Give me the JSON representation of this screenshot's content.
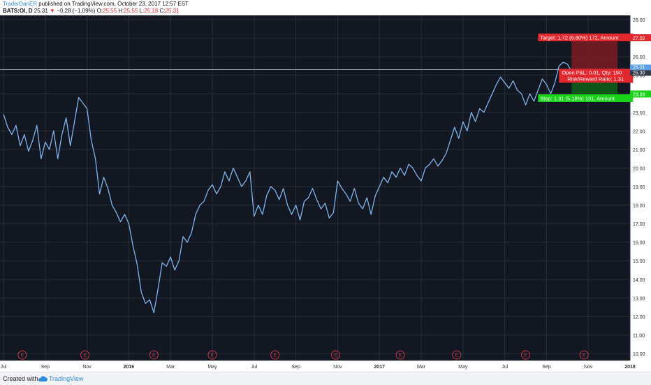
{
  "header": {
    "author": "TraderDanER",
    "published": "published on TradingView.com, October 23, 2017 12:57 EST",
    "symbol": "BATS:OI, D",
    "last": "25.31",
    "change": "−0.28 (−1.09%)",
    "open_label": "O:",
    "open": "25.55",
    "high_label": "H:",
    "high": "25.55",
    "low_label": "L:",
    "low": "25.18",
    "close_label": "C:",
    "close": "25.31"
  },
  "footer": {
    "created_with": "Created with",
    "brand": "TradingView"
  },
  "colors": {
    "background": "#131722",
    "line": "#7cb5ec",
    "grid": "#2a2e39",
    "target_zone": "#7a1d22",
    "stop_zone": "#0f5f1a",
    "target_label": "#e0282e",
    "stop_label": "#19d319"
  },
  "chart_data": {
    "type": "line",
    "ylim": [
      10,
      28
    ],
    "y_ticks": [
      "28.00",
      "27.00",
      "26.00",
      "25.00",
      "24.00",
      "23.00",
      "22.00",
      "21.00",
      "20.00",
      "19.00",
      "18.00",
      "17.00",
      "16.00",
      "15.00",
      "14.00",
      "13.00",
      "12.00",
      "11.00",
      "10.00"
    ],
    "x_ticks": [
      {
        "label": "Jul",
        "bold": false,
        "t": 0.0
      },
      {
        "label": "Sep",
        "bold": false,
        "t": 2.0
      },
      {
        "label": "Nov",
        "bold": false,
        "t": 4.0
      },
      {
        "label": "2016",
        "bold": true,
        "t": 6.0
      },
      {
        "label": "Mar",
        "bold": false,
        "t": 8.0
      },
      {
        "label": "May",
        "bold": false,
        "t": 10.0
      },
      {
        "label": "Jul",
        "bold": false,
        "t": 12.0
      },
      {
        "label": "Sep",
        "bold": false,
        "t": 14.0
      },
      {
        "label": "Nov",
        "bold": false,
        "t": 16.0
      },
      {
        "label": "2017",
        "bold": true,
        "t": 18.0
      },
      {
        "label": "Mar",
        "bold": false,
        "t": 20.0
      },
      {
        "label": "May",
        "bold": false,
        "t": 22.0
      },
      {
        "label": "Jul",
        "bold": false,
        "t": 24.0
      },
      {
        "label": "Sep",
        "bold": false,
        "t": 26.0
      },
      {
        "label": "Nov",
        "bold": false,
        "t": 28.0
      },
      {
        "label": "2018",
        "bold": true,
        "t": 30.0
      }
    ],
    "earnings_marker": "E",
    "earnings_t": [
      0.9,
      3.9,
      7.2,
      10.0,
      13.0,
      15.9,
      19.0,
      21.7,
      25.0,
      27.8
    ],
    "series": [
      {
        "points": [
          [
            0.0,
            22.9
          ],
          [
            0.2,
            22.2
          ],
          [
            0.4,
            21.8
          ],
          [
            0.6,
            22.3
          ],
          [
            0.8,
            21.2
          ],
          [
            1.0,
            21.8
          ],
          [
            1.2,
            20.9
          ],
          [
            1.4,
            21.5
          ],
          [
            1.6,
            22.3
          ],
          [
            1.8,
            20.5
          ],
          [
            2.0,
            21.4
          ],
          [
            2.2,
            21.0
          ],
          [
            2.4,
            22.0
          ],
          [
            2.6,
            20.5
          ],
          [
            2.8,
            21.8
          ],
          [
            3.0,
            22.7
          ],
          [
            3.2,
            21.2
          ],
          [
            3.4,
            22.5
          ],
          [
            3.6,
            23.8
          ],
          [
            3.8,
            23.5
          ],
          [
            4.0,
            23.2
          ],
          [
            4.2,
            21.5
          ],
          [
            4.4,
            20.5
          ],
          [
            4.6,
            18.6
          ],
          [
            4.8,
            19.5
          ],
          [
            5.0,
            18.9
          ],
          [
            5.2,
            18.0
          ],
          [
            5.4,
            17.6
          ],
          [
            5.6,
            17.1
          ],
          [
            5.8,
            17.5
          ],
          [
            6.0,
            17.0
          ],
          [
            6.2,
            15.8
          ],
          [
            6.4,
            14.8
          ],
          [
            6.6,
            13.3
          ],
          [
            6.8,
            12.7
          ],
          [
            7.0,
            12.9
          ],
          [
            7.2,
            12.2
          ],
          [
            7.4,
            13.5
          ],
          [
            7.6,
            14.9
          ],
          [
            7.8,
            14.7
          ],
          [
            8.0,
            15.2
          ],
          [
            8.2,
            14.5
          ],
          [
            8.4,
            15.0
          ],
          [
            8.6,
            16.3
          ],
          [
            8.8,
            16.0
          ],
          [
            9.0,
            16.5
          ],
          [
            9.2,
            17.5
          ],
          [
            9.4,
            18.0
          ],
          [
            9.6,
            18.2
          ],
          [
            9.8,
            18.8
          ],
          [
            10.0,
            19.1
          ],
          [
            10.2,
            18.6
          ],
          [
            10.4,
            19.0
          ],
          [
            10.6,
            19.8
          ],
          [
            10.8,
            19.3
          ],
          [
            11.0,
            20.0
          ],
          [
            11.2,
            19.5
          ],
          [
            11.4,
            19.0
          ],
          [
            11.6,
            19.3
          ],
          [
            11.8,
            19.8
          ],
          [
            12.0,
            17.4
          ],
          [
            12.2,
            18.0
          ],
          [
            12.4,
            17.5
          ],
          [
            12.6,
            18.5
          ],
          [
            12.8,
            19.0
          ],
          [
            13.0,
            18.8
          ],
          [
            13.2,
            18.3
          ],
          [
            13.4,
            18.9
          ],
          [
            13.6,
            18.0
          ],
          [
            13.8,
            17.5
          ],
          [
            14.0,
            18.0
          ],
          [
            14.2,
            17.2
          ],
          [
            14.4,
            18.2
          ],
          [
            14.6,
            18.4
          ],
          [
            14.8,
            18.9
          ],
          [
            15.0,
            18.3
          ],
          [
            15.2,
            17.8
          ],
          [
            15.4,
            18.1
          ],
          [
            15.6,
            17.3
          ],
          [
            15.8,
            17.6
          ],
          [
            16.0,
            19.3
          ],
          [
            16.2,
            18.9
          ],
          [
            16.4,
            18.6
          ],
          [
            16.6,
            18.2
          ],
          [
            16.8,
            18.9
          ],
          [
            17.0,
            18.1
          ],
          [
            17.2,
            17.8
          ],
          [
            17.4,
            18.4
          ],
          [
            17.6,
            17.5
          ],
          [
            17.8,
            18.5
          ],
          [
            18.0,
            19.0
          ],
          [
            18.2,
            19.5
          ],
          [
            18.4,
            19.2
          ],
          [
            18.6,
            19.8
          ],
          [
            18.8,
            19.5
          ],
          [
            19.0,
            20.0
          ],
          [
            19.2,
            19.6
          ],
          [
            19.4,
            20.2
          ],
          [
            19.6,
            20.0
          ],
          [
            19.8,
            19.6
          ],
          [
            20.0,
            19.3
          ],
          [
            20.2,
            20.0
          ],
          [
            20.4,
            20.2
          ],
          [
            20.6,
            20.5
          ],
          [
            20.8,
            20.1
          ],
          [
            21.0,
            20.4
          ],
          [
            21.2,
            20.8
          ],
          [
            21.4,
            21.5
          ],
          [
            21.6,
            22.2
          ],
          [
            21.8,
            21.6
          ],
          [
            22.0,
            22.5
          ],
          [
            22.2,
            22.0
          ],
          [
            22.4,
            23.0
          ],
          [
            22.6,
            22.5
          ],
          [
            22.8,
            23.2
          ],
          [
            23.0,
            23.0
          ],
          [
            23.2,
            23.5
          ],
          [
            23.4,
            24.0
          ],
          [
            23.6,
            24.5
          ],
          [
            23.8,
            24.9
          ],
          [
            24.0,
            24.6
          ],
          [
            24.2,
            24.3
          ],
          [
            24.4,
            24.7
          ],
          [
            24.6,
            24.2
          ],
          [
            24.8,
            24.0
          ],
          [
            25.0,
            23.4
          ],
          [
            25.2,
            24.0
          ],
          [
            25.4,
            23.6
          ],
          [
            25.6,
            24.2
          ],
          [
            25.8,
            24.8
          ],
          [
            26.0,
            24.5
          ],
          [
            26.2,
            24.0
          ],
          [
            26.4,
            24.6
          ],
          [
            26.6,
            25.5
          ],
          [
            26.8,
            25.7
          ],
          [
            27.0,
            25.6
          ],
          [
            27.15,
            25.31
          ]
        ]
      }
    ],
    "position": {
      "target": {
        "price": 27.02,
        "label": "Target: 1.72 (6.80%) 172, Amount"
      },
      "stop": {
        "price": 23.99,
        "label": "Stop: 1.31 (5.18%) 131, Amount"
      },
      "entry": {
        "price": 25.31
      },
      "pnl_label": "Open P&L: 0.01, Qty: 190",
      "rr_label": "Risk/Reward Ratio: 1.31",
      "entry_axis_labels": [
        "25.31",
        "25.30"
      ],
      "t_start": 27.2,
      "t_end": 29.4
    }
  }
}
